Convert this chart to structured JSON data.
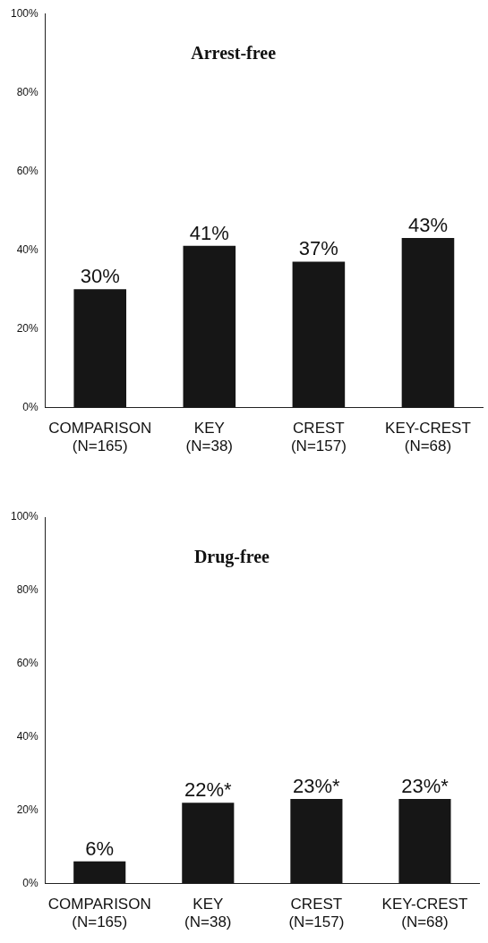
{
  "chart_data": [
    {
      "type": "bar",
      "title": "Arrest-free",
      "categories": [
        "COMPARISON\n(N=165)",
        "KEY\n(N=38)",
        "CREST\n(N=157)",
        "KEY-CREST\n(N=68)"
      ],
      "values": [
        30,
        41,
        37,
        43
      ],
      "value_labels": [
        "30%",
        "41%",
        "37%",
        "43%"
      ],
      "color": "#161616",
      "ylim": [
        0,
        100
      ],
      "yticks": [
        {
          "value": 0,
          "label": "0%"
        },
        {
          "value": 20,
          "label": "20%"
        },
        {
          "value": 40,
          "label": "40%"
        },
        {
          "value": 60,
          "label": "60%"
        },
        {
          "value": 80,
          "label": "80%"
        },
        {
          "value": 100,
          "label": "100%"
        }
      ],
      "grid": false,
      "legend": false
    },
    {
      "type": "bar",
      "title": "Drug-free",
      "categories": [
        "COMPARISON\n(N=165)",
        "KEY\n(N=38)",
        "CREST\n(N=157)",
        "KEY-CREST\n(N=68)"
      ],
      "values": [
        6,
        22,
        23,
        23
      ],
      "value_labels": [
        "6%",
        "22%*",
        "23%*",
        "23%*"
      ],
      "color": "#161616",
      "ylim": [
        0,
        100
      ],
      "yticks": [
        {
          "value": 0,
          "label": "0%"
        },
        {
          "value": 20,
          "label": "20%"
        },
        {
          "value": 40,
          "label": "40%"
        },
        {
          "value": 60,
          "label": "60%"
        },
        {
          "value": 80,
          "label": "80%"
        },
        {
          "value": 100,
          "label": "100%"
        }
      ],
      "grid": false,
      "legend": false
    }
  ]
}
